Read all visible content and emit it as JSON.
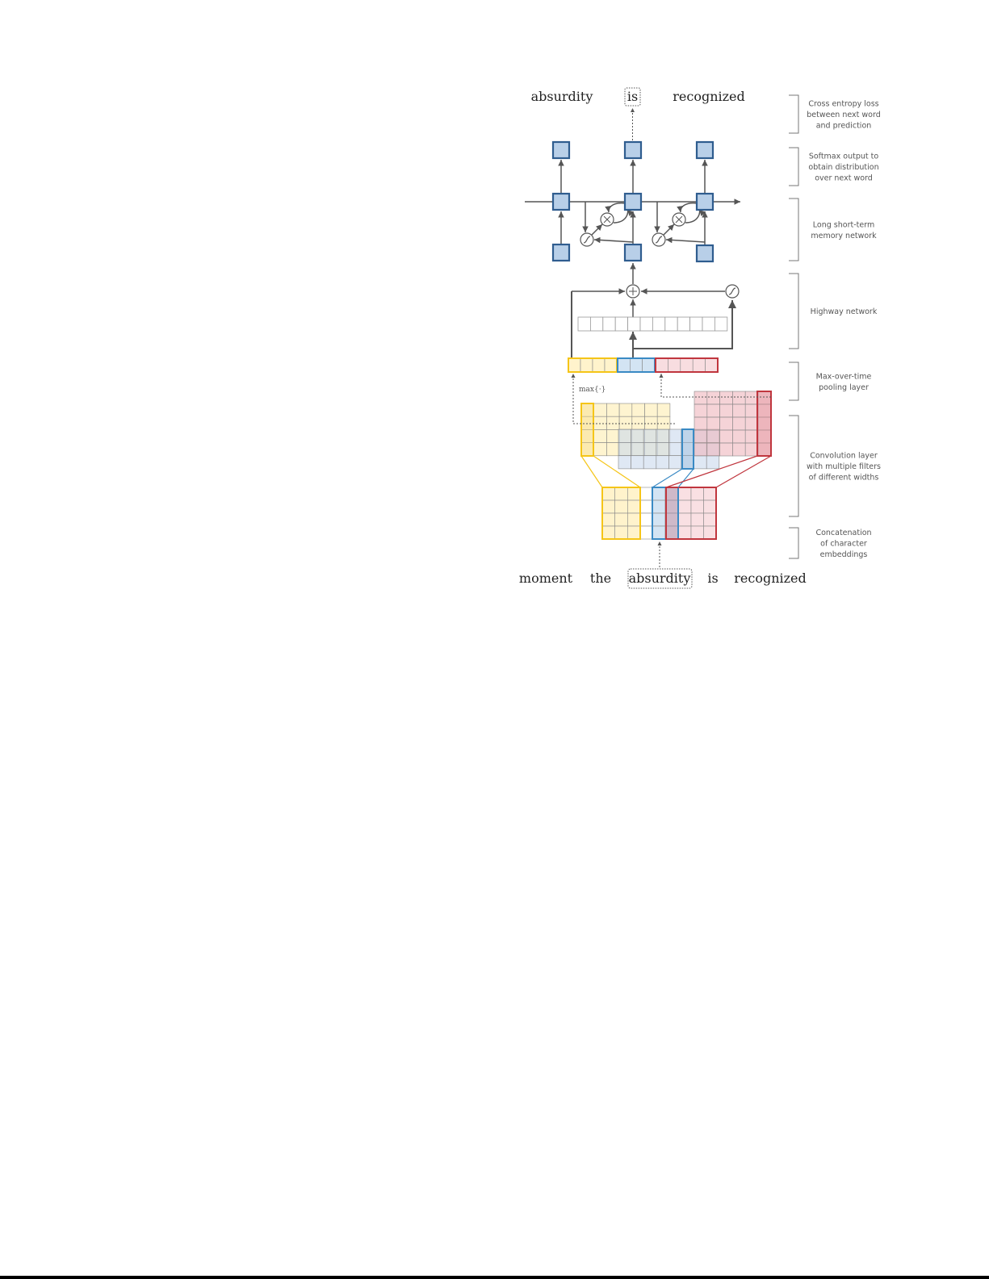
{
  "top_words": [
    "absurdity",
    "is",
    "recognized"
  ],
  "bottom_words": [
    "moment",
    "the",
    "absurdity",
    "is",
    "recognized"
  ],
  "pooling_label": "max{·}",
  "layer_labels": [
    [
      "Cross entropy loss",
      "between next word",
      "and prediction"
    ],
    [
      "Softmax output to",
      "obtain distribution",
      "over next word"
    ],
    [
      "Long short-term",
      "memory network"
    ],
    [
      "Highway network"
    ],
    [
      "Max-over-time",
      "pooling layer"
    ],
    [
      "Convolution layer",
      "with multiple filters",
      "of different widths"
    ],
    [
      "Concatenation",
      "of character",
      "embeddings"
    ]
  ],
  "colors": {
    "node_fill": "#b8cfe8",
    "node_stroke": "#2f5d8f",
    "yellow": "#f5c518",
    "blue": "#3a8ac4",
    "red": "#c0363e",
    "line": "#555555"
  },
  "icons": [
    "multiply-gate-icon",
    "sigmoid-gate-icon",
    "plus-gate-icon"
  ]
}
